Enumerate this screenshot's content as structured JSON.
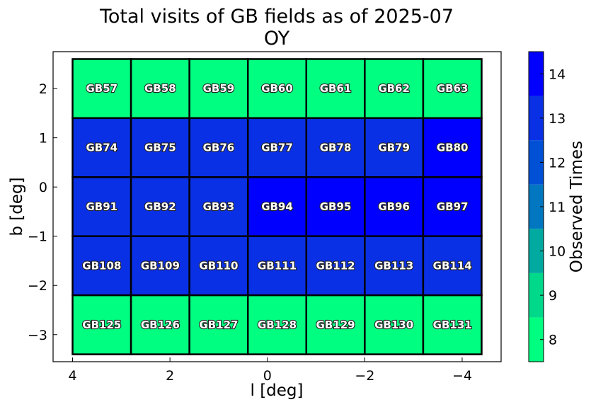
{
  "chart_data": {
    "type": "heatmap",
    "title": "Total visits of GB fields as of 2025-07",
    "subtitle": "OY",
    "xlabel": "l [deg]",
    "ylabel": "b [deg]",
    "xlim": [
      4.4,
      -4.8
    ],
    "ylim": [
      -3.55,
      2.75
    ],
    "x_inverted": true,
    "x_ticks": [
      4,
      2,
      0,
      -2,
      -4
    ],
    "x_tick_labels": [
      "4",
      "2",
      "0",
      "−2",
      "−4"
    ],
    "y_ticks": [
      2,
      1,
      0,
      -1,
      -2,
      -3
    ],
    "y_tick_labels": [
      "2",
      "1",
      "0",
      "−1",
      "−2",
      "−3"
    ],
    "cell_l_edges": [
      4.0,
      2.8,
      1.6,
      0.4,
      -0.8,
      -2.0,
      -3.2,
      -4.4
    ],
    "cell_b_edges": [
      2.6,
      1.4,
      0.2,
      -1.0,
      -2.2,
      -3.4
    ],
    "rows": [
      {
        "fields": [
          "GB57",
          "GB58",
          "GB59",
          "GB60",
          "GB61",
          "GB62",
          "GB63"
        ],
        "visits": [
          8,
          8,
          8,
          8,
          8,
          8,
          8
        ]
      },
      {
        "fields": [
          "GB74",
          "GB75",
          "GB76",
          "GB77",
          "GB78",
          "GB79",
          "GB80"
        ],
        "visits": [
          13,
          13,
          13,
          13,
          13,
          13,
          14
        ]
      },
      {
        "fields": [
          "GB91",
          "GB92",
          "GB93",
          "GB94",
          "GB95",
          "GB96",
          "GB97"
        ],
        "visits": [
          13,
          13,
          13,
          14,
          14,
          14,
          14
        ]
      },
      {
        "fields": [
          "GB108",
          "GB109",
          "GB110",
          "GB111",
          "GB112",
          "GB113",
          "GB114"
        ],
        "visits": [
          13,
          13,
          13,
          13,
          13,
          13,
          13
        ]
      },
      {
        "fields": [
          "GB125",
          "GB126",
          "GB127",
          "GB128",
          "GB129",
          "GB130",
          "GB131"
        ],
        "visits": [
          8,
          8,
          8,
          8,
          8,
          8,
          8
        ]
      }
    ],
    "colorbar": {
      "label": "Observed Times",
      "range": [
        7.5,
        14.5
      ],
      "ticks": [
        8,
        9,
        10,
        11,
        12,
        13,
        14
      ],
      "levels": [
        {
          "value": 8,
          "color": "#00ff80"
        },
        {
          "value": 9,
          "color": "#00d98a"
        },
        {
          "value": 10,
          "color": "#00aaa0"
        },
        {
          "value": 11,
          "color": "#0077c0"
        },
        {
          "value": 12,
          "color": "#0050d6"
        },
        {
          "value": 13,
          "color": "#0a30e6"
        },
        {
          "value": 14,
          "color": "#0000ff"
        }
      ]
    },
    "grid": false,
    "legend": "none"
  }
}
